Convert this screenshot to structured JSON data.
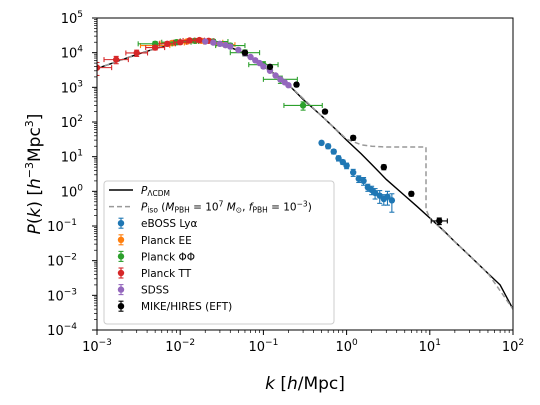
{
  "chart_data": {
    "type": "scatter",
    "xlabel": "k [h/Mpc]",
    "ylabel": "P(k) [h^-3 Mpc^3]",
    "xscale": "log",
    "yscale": "log",
    "xlim": [
      0.001,
      100
    ],
    "ylim": [
      0.0001,
      100000
    ],
    "x_ticks": [
      "10^-3",
      "10^-2",
      "10^-1",
      "10^0",
      "10^1",
      "10^2"
    ],
    "y_ticks": [
      "10^-4",
      "10^-3",
      "10^-2",
      "10^-1",
      "10^0",
      "10^1",
      "10^2",
      "10^3",
      "10^4",
      "10^5"
    ],
    "grid": false,
    "legend_position": "lower-left",
    "lines": [
      {
        "name": "P_ΛCDM",
        "style": "solid",
        "color": "#000000",
        "x": [
          0.001,
          0.0015,
          0.002,
          0.003,
          0.005,
          0.007,
          0.01,
          0.015,
          0.02,
          0.03,
          0.05,
          0.07,
          0.1,
          0.15,
          0.2,
          0.3,
          0.5,
          0.7,
          1,
          1.5,
          2,
          3,
          5,
          7,
          10,
          15,
          20,
          30,
          50,
          70,
          100
        ],
        "y": [
          3500,
          4900,
          6300,
          8800,
          13000,
          16500,
          20000,
          22500,
          22000,
          18500,
          11500,
          7300,
          4000,
          2100,
          1200,
          450,
          150,
          70,
          30,
          12,
          6,
          2.2,
          0.75,
          0.37,
          0.17,
          0.07,
          0.035,
          0.014,
          0.0043,
          0.002,
          0.0004
        ]
      },
      {
        "name": "P_iso (M_PBH = 10^7 M_⊙, f_PBH = 10^-3)",
        "style": "dashed",
        "color": "#999999",
        "x": [
          0.001,
          0.002,
          0.005,
          0.01,
          0.02,
          0.05,
          0.1,
          0.2,
          0.5,
          1,
          1.5,
          2,
          3,
          5,
          7,
          9,
          9.01,
          10,
          20,
          50,
          100
        ],
        "y": [
          3500,
          6300,
          13000,
          20000,
          22000,
          11500,
          4000,
          1200,
          150,
          32,
          22,
          20,
          19,
          19,
          19,
          19,
          0.3,
          0.17,
          0.035,
          0.0043,
          0.0004
        ]
      }
    ],
    "series": [
      {
        "name": "eBOSS Lyα",
        "color": "#1f77b4",
        "marker": "circle",
        "x": [
          0.5,
          0.6,
          0.7,
          0.8,
          0.9,
          1.0,
          1.2,
          1.4,
          1.6,
          1.8,
          2.0,
          2.2,
          2.5,
          2.8,
          3.1,
          3.5
        ],
        "y": [
          25,
          20,
          14,
          9,
          7,
          5.5,
          3.5,
          2.3,
          2.0,
          1.3,
          1.1,
          0.9,
          0.75,
          0.6,
          0.7,
          0.55
        ],
        "yerr": [
          3,
          3,
          2,
          1.5,
          1,
          1,
          0.8,
          0.5,
          0.5,
          0.3,
          0.3,
          0.3,
          0.3,
          0.2,
          0.3,
          0.3
        ]
      },
      {
        "name": "Planck EE",
        "color": "#ff7f0e",
        "marker": "circle",
        "x": [
          0.005,
          0.008,
          0.012,
          0.018,
          0.025,
          0.035
        ],
        "y": [
          16000,
          19000,
          21000,
          22000,
          20000,
          17000
        ],
        "xerr_factor": [
          1.5,
          1.4,
          1.3,
          1.3,
          1.3,
          1.3
        ],
        "yerr": [
          3000,
          3000,
          3000,
          2500,
          2500,
          2500
        ]
      },
      {
        "name": "Planck ΦΦ",
        "color": "#2ca02c",
        "marker": "circle",
        "x": [
          0.005,
          0.009,
          0.015,
          0.025,
          0.04,
          0.06,
          0.1,
          0.16,
          0.3
        ],
        "y": [
          18000,
          20000,
          22000,
          21000,
          16000,
          10000,
          4500,
          1700,
          300
        ],
        "xerr_factor": [
          1.6,
          1.5,
          1.5,
          1.5,
          1.5,
          1.5,
          1.5,
          1.6,
          1.7
        ],
        "yerr": [
          3000,
          3000,
          3000,
          3000,
          2500,
          2000,
          1000,
          400,
          80
        ]
      },
      {
        "name": "Planck TT",
        "color": "#d62728",
        "marker": "circle",
        "x": [
          0.001,
          0.0017,
          0.003,
          0.005,
          0.007,
          0.01,
          0.013,
          0.017,
          0.022
        ],
        "y": [
          3700,
          6300,
          9800,
          14000,
          18000,
          20000,
          22500,
          23000,
          22000
        ],
        "xerr_factor": [
          1.5,
          1.4,
          1.35,
          1.3,
          1.25,
          1.2,
          1.2,
          1.15,
          1.15
        ],
        "yerr": [
          1500,
          1500,
          2000,
          2000,
          2500,
          2500,
          2500,
          2500,
          2500
        ]
      },
      {
        "name": "SDSS",
        "color": "#9467bd",
        "marker": "circle",
        "x": [
          0.02,
          0.025,
          0.03,
          0.035,
          0.04,
          0.05,
          0.06,
          0.07,
          0.08,
          0.09,
          0.1,
          0.12,
          0.14,
          0.16,
          0.18,
          0.2
        ],
        "y": [
          21000,
          19500,
          18000,
          16500,
          15000,
          12000,
          9500,
          7500,
          6000,
          5000,
          4000,
          3000,
          2200,
          1700,
          1400,
          1150
        ],
        "yerr": [
          2000,
          1800,
          1600,
          1500,
          1300,
          1000,
          800,
          600,
          500,
          400,
          350,
          250,
          200,
          150,
          130,
          110
        ]
      },
      {
        "name": "MIKE/HIRES (EFT)",
        "color": "#000000",
        "marker": "circle",
        "x": [
          0.06,
          0.12,
          0.25,
          0.55,
          1.2,
          2.8,
          6.0,
          13.0
        ],
        "y": [
          10000,
          3900,
          1200,
          200,
          35,
          5,
          0.85,
          0.14
        ],
        "xerr_factor": [
          1.0,
          1.0,
          1.0,
          1.0,
          1.0,
          1.0,
          1.0,
          1.25
        ],
        "yerr": [
          1500,
          500,
          150,
          25,
          5,
          0.8,
          0.12,
          0.03
        ]
      }
    ],
    "legend": {
      "items": [
        {
          "label": "P_ΛCDM",
          "kind": "line-solid",
          "color": "#000000"
        },
        {
          "label": "P_iso (M_PBH = 10^7 M_⊙, f_PBH = 10^-3)",
          "kind": "line-dashed",
          "color": "#999999"
        },
        {
          "label": "eBOSS Lyα",
          "kind": "errorbar",
          "color": "#1f77b4"
        },
        {
          "label": "Planck EE",
          "kind": "errorbar",
          "color": "#ff7f0e"
        },
        {
          "label": "Planck ΦΦ",
          "kind": "errorbar",
          "color": "#2ca02c"
        },
        {
          "label": "Planck TT",
          "kind": "errorbar",
          "color": "#d62728"
        },
        {
          "label": "SDSS",
          "kind": "errorbar",
          "color": "#9467bd"
        },
        {
          "label": "MIKE/HIRES (EFT)",
          "kind": "errorbar",
          "color": "#000000"
        }
      ]
    }
  }
}
